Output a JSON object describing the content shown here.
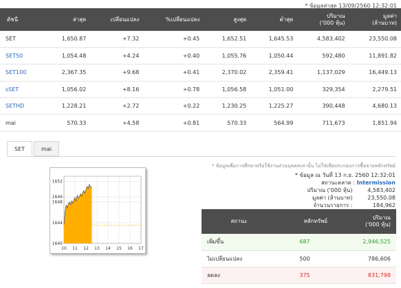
{
  "timestamp": "* ข้อมูลล่าสุด 13/09/2560 12:32:01",
  "index_table": {
    "headers": [
      "ดัชนี",
      "ล่าสุด",
      "เปลี่ยนแปลง",
      "%เปลี่ยนแปลง",
      "สูงสุด",
      "ต่ำสุด",
      "ปริมาณ\n('000 หุ้น)",
      "มูลค่า\n(ล้านบาท)"
    ],
    "rows": [
      {
        "name": "SET",
        "last": "1,650.87",
        "chg": "+7.32",
        "pct": "+0.45",
        "high": "1,652.51",
        "low": "1,645.53",
        "vol": "4,583,402",
        "val": "23,550.08",
        "link": false
      },
      {
        "name": "SET50",
        "last": "1,054.48",
        "chg": "+4.24",
        "pct": "+0.40",
        "high": "1,055.76",
        "low": "1,050.44",
        "vol": "592,480",
        "val": "11,891.82",
        "link": true
      },
      {
        "name": "SET100",
        "last": "2,367.35",
        "chg": "+9.68",
        "pct": "+0.41",
        "high": "2,370.02",
        "low": "2,359.41",
        "vol": "1,137,029",
        "val": "16,449.13",
        "link": true
      },
      {
        "name": "sSET",
        "last": "1,056.02",
        "chg": "+8.16",
        "pct": "+0.78",
        "high": "1,056.58",
        "low": "1,051.00",
        "vol": "329,354",
        "val": "2,279.51",
        "link": true
      },
      {
        "name": "SETHD",
        "last": "1,228.21",
        "chg": "+2.72",
        "pct": "+0.22",
        "high": "1,230.25",
        "low": "1,225.27",
        "vol": "390,448",
        "val": "4,680.13",
        "link": true
      },
      {
        "name": "mai",
        "last": "570.33",
        "chg": "+4.58",
        "pct": "+0.81",
        "high": "570.33",
        "low": "564.99",
        "vol": "711,673",
        "val": "1,851.94",
        "link": false
      }
    ]
  },
  "tabs": [
    {
      "label": "SET",
      "active": true
    },
    {
      "label": "mai",
      "active": false
    }
  ],
  "chart_data": {
    "type": "area",
    "x_ticks": [
      "10",
      "11",
      "12",
      "13",
      "14",
      "15",
      "16",
      "17"
    ],
    "y_ticks": [
      1640,
      1644,
      1648,
      1649,
      1652
    ],
    "ylim": [
      1640,
      1653
    ],
    "xlim": [
      10,
      17
    ],
    "reference_line": 1643.55,
    "x": [
      10.0,
      10.1,
      10.2,
      10.3,
      10.4,
      10.5,
      10.6,
      10.7,
      10.8,
      10.9,
      11.0,
      11.1,
      11.2,
      11.3,
      11.4,
      11.5,
      11.6,
      11.7,
      11.8,
      11.9,
      12.0,
      12.1,
      12.2,
      12.3,
      12.4,
      12.53
    ],
    "values": [
      1643.6,
      1646.2,
      1647.4,
      1646.9,
      1647.7,
      1648.0,
      1647.5,
      1648.2,
      1647.8,
      1648.4,
      1648.9,
      1648.1,
      1649.3,
      1648.8,
      1649.0,
      1649.6,
      1649.1,
      1649.8,
      1650.2,
      1649.7,
      1650.4,
      1651.0,
      1650.6,
      1651.4,
      1650.9,
      1650.9
    ]
  },
  "disclaimer": "* ข้อมูลเพื่อการศึกษาหรือใช้งานส่วนบุคคลเท่านั้น ไม่ใช่เพื่อประกอบการซื้อขายหลักทรัพย์",
  "info": {
    "as_of": "* ข้อมูล ณ วันที่ 13 ก.ย. 2560 12:32:01",
    "status_label": "สถานะตลาด :",
    "status_value": "Intermission",
    "volume_label": "ปริมาณ ('000 หุ้น)",
    "volume_value": "4,583,402",
    "value_label": "มูลค่า (ล้านบาท)",
    "value_value": "23,550.08",
    "deals_label": "จำนวนรายการ :",
    "deals_value": "184,962"
  },
  "stat_table": {
    "headers": [
      "สถานะ",
      "หลักทรัพย์",
      "ปริมาณ\n('000 หุ้น)"
    ],
    "rows": [
      {
        "status": "เพิ่มขึ้น",
        "count": "687",
        "vol": "2,946,525",
        "color": "green"
      },
      {
        "status": "ไม่เปลี่ยนแปลง",
        "count": "500",
        "vol": "786,606",
        "color": "none"
      },
      {
        "status": "ลดลง",
        "count": "375",
        "vol": "831,798",
        "color": "red"
      }
    ]
  },
  "colors": {
    "header_bg": "#4d4d4d",
    "positive": "#2a9a2a",
    "negative": "#d62a2a",
    "area_fill": "#ffae00",
    "link": "#2a66b8"
  }
}
